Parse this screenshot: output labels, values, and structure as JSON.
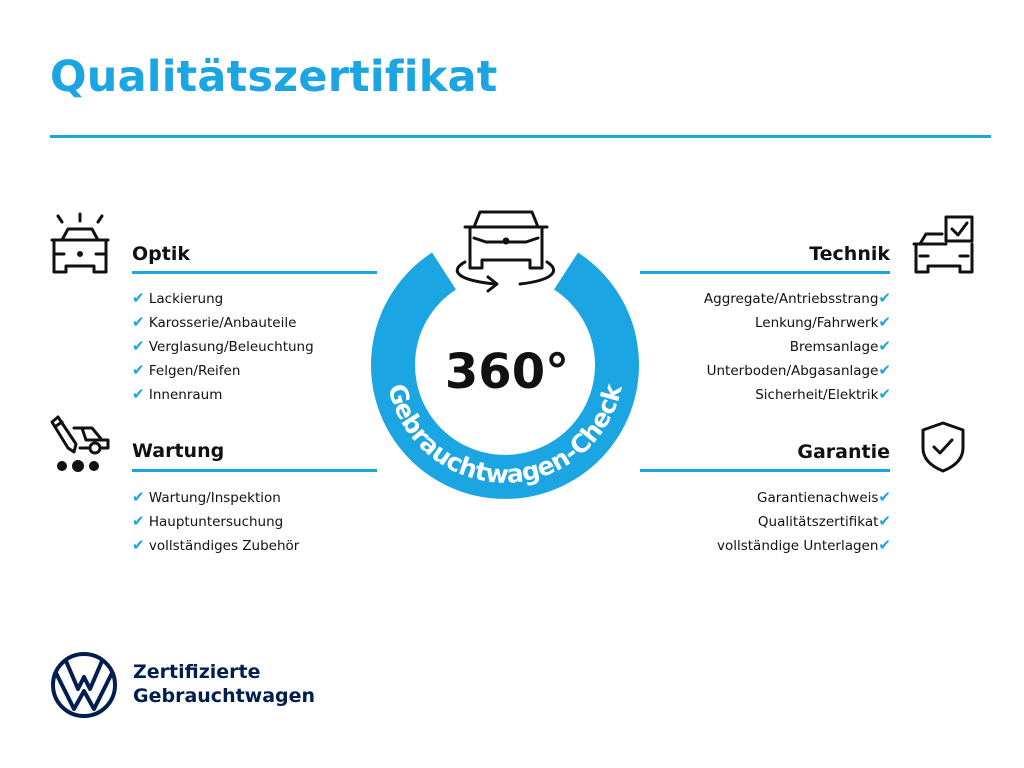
{
  "title": "Qualitätszertifikat",
  "brand_color": "#1ba5e2",
  "logo_color": "#001e50",
  "center": {
    "degree_label": "360°",
    "ring_label": "Gebrauchtwagen-Check",
    "icon": "car-rotate-icon"
  },
  "sections": {
    "optik": {
      "title": "Optik",
      "icon": "car-lights-icon",
      "items": [
        "Lackierung",
        "Karosserie/Anbauteile",
        "Verglasung/Beleuchtung",
        "Felgen/Reifen",
        "Innenraum"
      ]
    },
    "wartung": {
      "title": "Wartung",
      "icon": "car-maintenance-icon",
      "items": [
        "Wartung/Inspektion",
        "Hauptuntersuchung",
        "vollständiges Zubehör"
      ]
    },
    "technik": {
      "title": "Technik",
      "icon": "car-checkbox-icon",
      "items": [
        "Aggregate/Antriebsstrang",
        "Lenkung/Fahrwerk",
        "Bremsanlage",
        "Unterboden/Abgasanlage",
        "Sicherheit/Elektrik"
      ]
    },
    "garantie": {
      "title": "Garantie",
      "icon": "shield-check-icon",
      "items": [
        "Garantienachweis",
        "Qualitätszertifikat",
        "vollständige Unterlagen"
      ]
    }
  },
  "check_mark": "✔",
  "logo": {
    "line1": "Zertifizierte",
    "line2": "Gebrauchtwagen"
  }
}
